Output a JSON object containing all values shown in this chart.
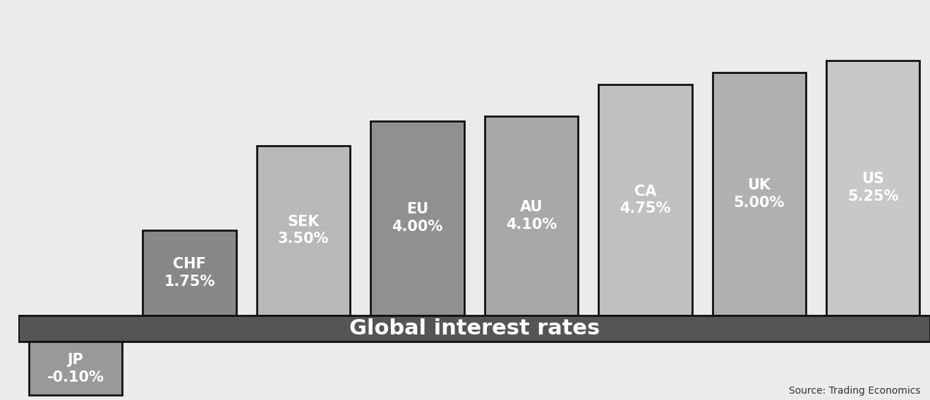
{
  "categories": [
    "JP",
    "CHF",
    "SEK",
    "EU",
    "AU",
    "CA",
    "UK",
    "US"
  ],
  "values": [
    -0.1,
    1.75,
    3.5,
    4.0,
    4.1,
    4.75,
    5.0,
    5.25
  ],
  "labels_line1": [
    "JP",
    "CHF",
    "SEK",
    "EU",
    "AU",
    "CA",
    "UK",
    "US"
  ],
  "labels_line2": [
    "-0.10%",
    "1.75%",
    "3.50%",
    "4.00%",
    "4.10%",
    "4.75%",
    "5.00%",
    "5.25%"
  ],
  "bar_colors": [
    "#999999",
    "#888888",
    "#b8b8b8",
    "#909090",
    "#a8a8a8",
    "#c0c0c0",
    "#b0b0b0",
    "#c8c8c8"
  ],
  "bar_edge_color": "#111111",
  "title": "Global interest rates",
  "title_bar_color": "#555555",
  "title_text_color": "#ffffff",
  "source_text": "Source: Trading Economics",
  "background_color": "#ebebeb",
  "text_color": "#ffffff",
  "bar_edge_width": 2.0
}
